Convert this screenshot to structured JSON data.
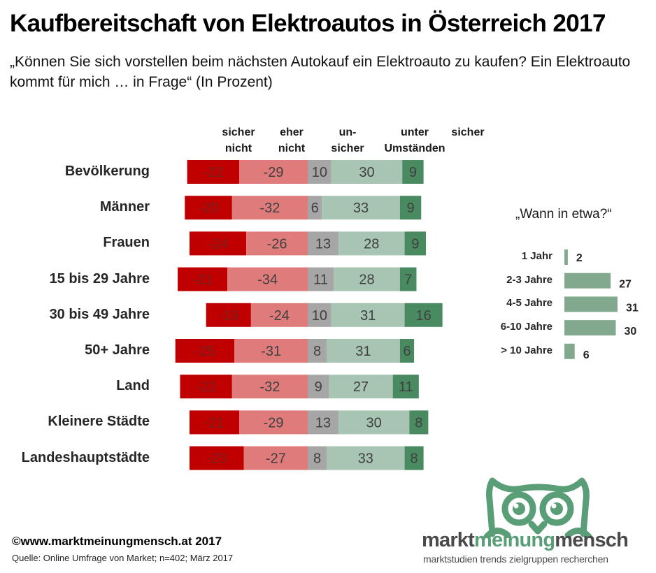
{
  "header": {
    "title": "Kaufbereitschaft von Elektroautos in Österreich 2017",
    "subtitle": "„Können Sie sich vorstellen beim nächsten Autokauf ein Elektroauto zu kaufen? Ein Elektroauto kommt für mich … in Frage“ (In Prozent)"
  },
  "colors": {
    "sicher_nicht": "#c00000",
    "eher_nicht": "#e07b7b",
    "unsicher": "#a6a6a6",
    "unter_umstaenden": "#a7c5b2",
    "sicher": "#4a8a60",
    "side_bar": "#82a98e",
    "brand_green": "#5a9e78",
    "label_text": "#404040"
  },
  "chart_data": [
    {
      "type": "bar",
      "orientation": "horizontal",
      "stacked": "diverging",
      "title": "Kaufbereitschaft von Elektroautos in Österreich 2017",
      "categories": [
        "Bevölkerung",
        "Männer",
        "Frauen",
        "15 bis 29 Jahre",
        "30 bis 49 Jahre",
        "50+ Jahre",
        "Land",
        "Kleinere Städte",
        "Landeshauptstädte"
      ],
      "series": [
        {
          "name": "sicher nicht",
          "values": [
            -22,
            -20,
            -24,
            -21,
            -19,
            -25,
            -22,
            -21,
            -23
          ]
        },
        {
          "name": "eher nicht",
          "values": [
            -29,
            -32,
            -26,
            -34,
            -24,
            -31,
            -32,
            -29,
            -27
          ]
        },
        {
          "name": "un- sicher",
          "values": [
            10,
            6,
            13,
            11,
            10,
            8,
            9,
            13,
            8
          ]
        },
        {
          "name": "unter Umständen",
          "values": [
            30,
            33,
            28,
            28,
            31,
            31,
            27,
            30,
            33
          ]
        },
        {
          "name": "sicher",
          "values": [
            9,
            9,
            9,
            7,
            16,
            6,
            11,
            8,
            8
          ]
        }
      ],
      "series_headers": [
        [
          "sicher",
          "nicht"
        ],
        [
          "eher",
          "nicht"
        ],
        [
          "un-",
          "sicher"
        ],
        [
          "unter",
          "Umständen"
        ],
        [
          "sicher",
          ""
        ]
      ],
      "xlabel": "",
      "ylabel": "",
      "grid": false,
      "legend": "top (column headers)"
    },
    {
      "type": "bar",
      "orientation": "horizontal",
      "title": "„Wann in etwa?“",
      "categories": [
        "1 Jahr",
        "2-3 Jahre",
        "4-5 Jahre",
        "6-10 Jahre",
        "> 10 Jahre"
      ],
      "values": [
        2,
        27,
        31,
        30,
        6
      ],
      "grid": false,
      "legend": "none"
    }
  ],
  "footer": {
    "copyright": "©www.marktmeinungmensch.at 2017",
    "source": "Quelle: Online Umfrage von Market; n=402; März 2017"
  },
  "brand": {
    "part1": "markt",
    "part2": "meinung",
    "part3": "mensch",
    "tagline": "marktstudien trends zielgruppen recherchen",
    "logo_icon": "owl-icon"
  }
}
